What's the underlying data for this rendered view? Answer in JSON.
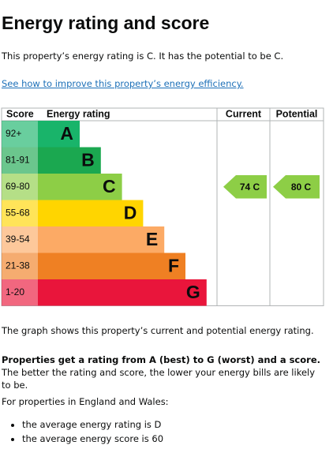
{
  "header": {
    "title": "Energy rating and score"
  },
  "intro": "This property’s energy rating is C. It has the potential to be C.",
  "link": "See how to improve this property’s energy efficiency.",
  "graph": {
    "headers": {
      "score": "Score",
      "rating": "Energy rating",
      "current": "Current",
      "potential": "Potential"
    },
    "bands": [
      {
        "score": "92+",
        "letter": "A",
        "color": "#19b46a"
      },
      {
        "score": "81-91",
        "letter": "B",
        "color": "#1ba850"
      },
      {
        "score": "69-80",
        "letter": "C",
        "color": "#8dce46"
      },
      {
        "score": "55-68",
        "letter": "D",
        "color": "#ffd500"
      },
      {
        "score": "39-54",
        "letter": "E",
        "color": "#fcaa65"
      },
      {
        "score": "21-38",
        "letter": "F",
        "color": "#ef8023"
      },
      {
        "score": "1-20",
        "letter": "G",
        "color": "#e9153b"
      }
    ],
    "current": "74 C",
    "potential": "80 C"
  },
  "explanation": "The graph shows this property’s current and potential energy rating.",
  "rating_note": {
    "bold": "Properties get a rating from A (best) to G (worst) and a score.",
    "rest": " The better the rating and score, the lower your energy bills are likely to be."
  },
  "region_intro": "For properties in England and Wales:",
  "averages": [
    "the average energy rating is D",
    "the average energy score is 60"
  ]
}
